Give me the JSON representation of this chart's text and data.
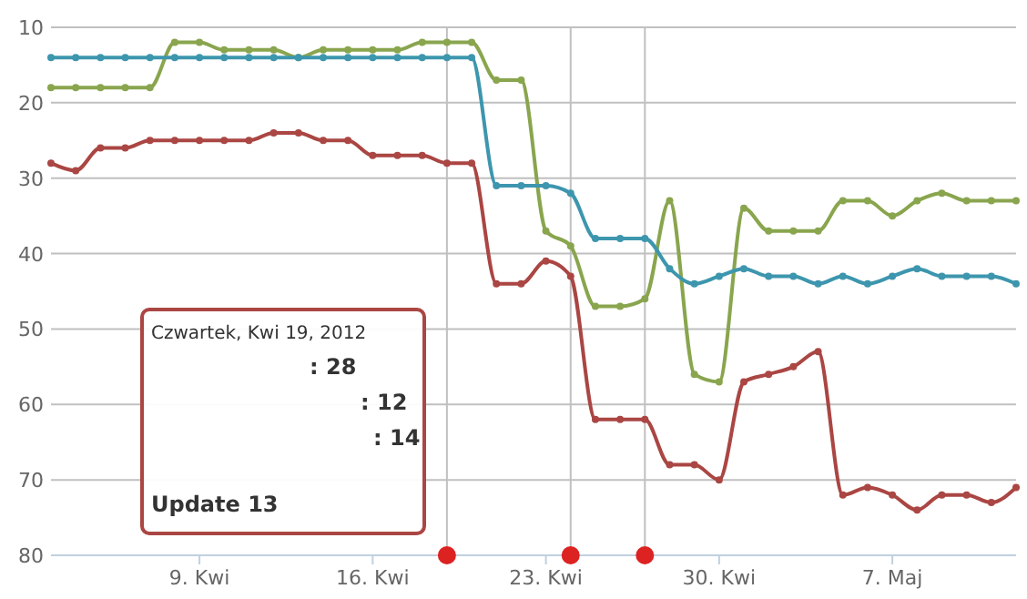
{
  "chart_data": {
    "type": "line",
    "x": [
      "2012-04-03",
      "2012-04-04",
      "2012-04-05",
      "2012-04-06",
      "2012-04-07",
      "2012-04-08",
      "2012-04-09",
      "2012-04-10",
      "2012-04-11",
      "2012-04-12",
      "2012-04-13",
      "2012-04-14",
      "2012-04-15",
      "2012-04-16",
      "2012-04-17",
      "2012-04-18",
      "2012-04-19",
      "2012-04-20",
      "2012-04-21",
      "2012-04-22",
      "2012-04-23",
      "2012-04-24",
      "2012-04-25",
      "2012-04-26",
      "2012-04-27",
      "2012-04-28",
      "2012-04-29",
      "2012-04-30",
      "2012-05-01",
      "2012-05-02",
      "2012-05-03",
      "2012-05-04",
      "2012-05-05",
      "2012-05-06",
      "2012-05-07",
      "2012-05-08",
      "2012-05-09",
      "2012-05-10",
      "2012-05-11",
      "2012-05-12"
    ],
    "series": [
      {
        "color": "#aa4643",
        "values": [
          28,
          29,
          26,
          26,
          25,
          25,
          25,
          25,
          25,
          24,
          24,
          25,
          25,
          27,
          27,
          27,
          28,
          28,
          44,
          44,
          41,
          43,
          62,
          62,
          62,
          68,
          68,
          70,
          57,
          56,
          55,
          53,
          72,
          71,
          72,
          74,
          72,
          72,
          73,
          71
        ]
      },
      {
        "color": "#89a54e",
        "values": [
          18,
          18,
          18,
          18,
          18,
          12,
          12,
          13,
          13,
          13,
          14,
          13,
          13,
          13,
          13,
          12,
          12,
          12,
          17,
          17,
          37,
          39,
          47,
          47,
          46,
          33,
          56,
          57,
          34,
          37,
          37,
          37,
          33,
          33,
          35,
          33,
          32,
          33,
          33,
          33
        ]
      },
      {
        "color": "#3d96ae",
        "values": [
          14,
          14,
          14,
          14,
          14,
          14,
          14,
          14,
          14,
          14,
          14,
          14,
          14,
          14,
          14,
          14,
          14,
          14,
          31,
          31,
          31,
          32,
          38,
          38,
          38,
          42,
          44,
          43,
          42,
          43,
          43,
          44,
          43,
          44,
          43,
          42,
          43,
          43,
          43,
          44
        ]
      },
      {
        "type": "scatter",
        "color": "#dd2222",
        "x": [
          "2012-04-19",
          "2012-04-24",
          "2012-04-27"
        ],
        "values": [
          80,
          80,
          80
        ]
      }
    ],
    "xlim": [
      "2012-04-03",
      "2012-05-12"
    ],
    "xticks": [
      {
        "value": "2012-04-09",
        "label": "9. Kwi"
      },
      {
        "value": "2012-04-16",
        "label": "16. Kwi"
      },
      {
        "value": "2012-04-23",
        "label": "23. Kwi"
      },
      {
        "value": "2012-04-30",
        "label": "30. Kwi"
      },
      {
        "value": "2012-05-07",
        "label": "7. Maj"
      }
    ],
    "ylim": [
      80,
      10
    ],
    "yticks": [
      10,
      20,
      30,
      40,
      50,
      60,
      70,
      80
    ],
    "grid": "y",
    "marker": "circle",
    "ref_lines": [
      {
        "axis": "x",
        "value": "2012-04-19",
        "color": "#c0c0c0"
      },
      {
        "axis": "x",
        "value": "2012-04-24",
        "color": "#c0c0c0"
      },
      {
        "axis": "x",
        "value": "2012-04-27",
        "color": "#c0c0c0"
      }
    ],
    "annotations": [
      "Czwartek, Kwi 19, 2012",
      ": 28",
      ": 12",
      ": 14",
      "Update 13"
    ]
  }
}
